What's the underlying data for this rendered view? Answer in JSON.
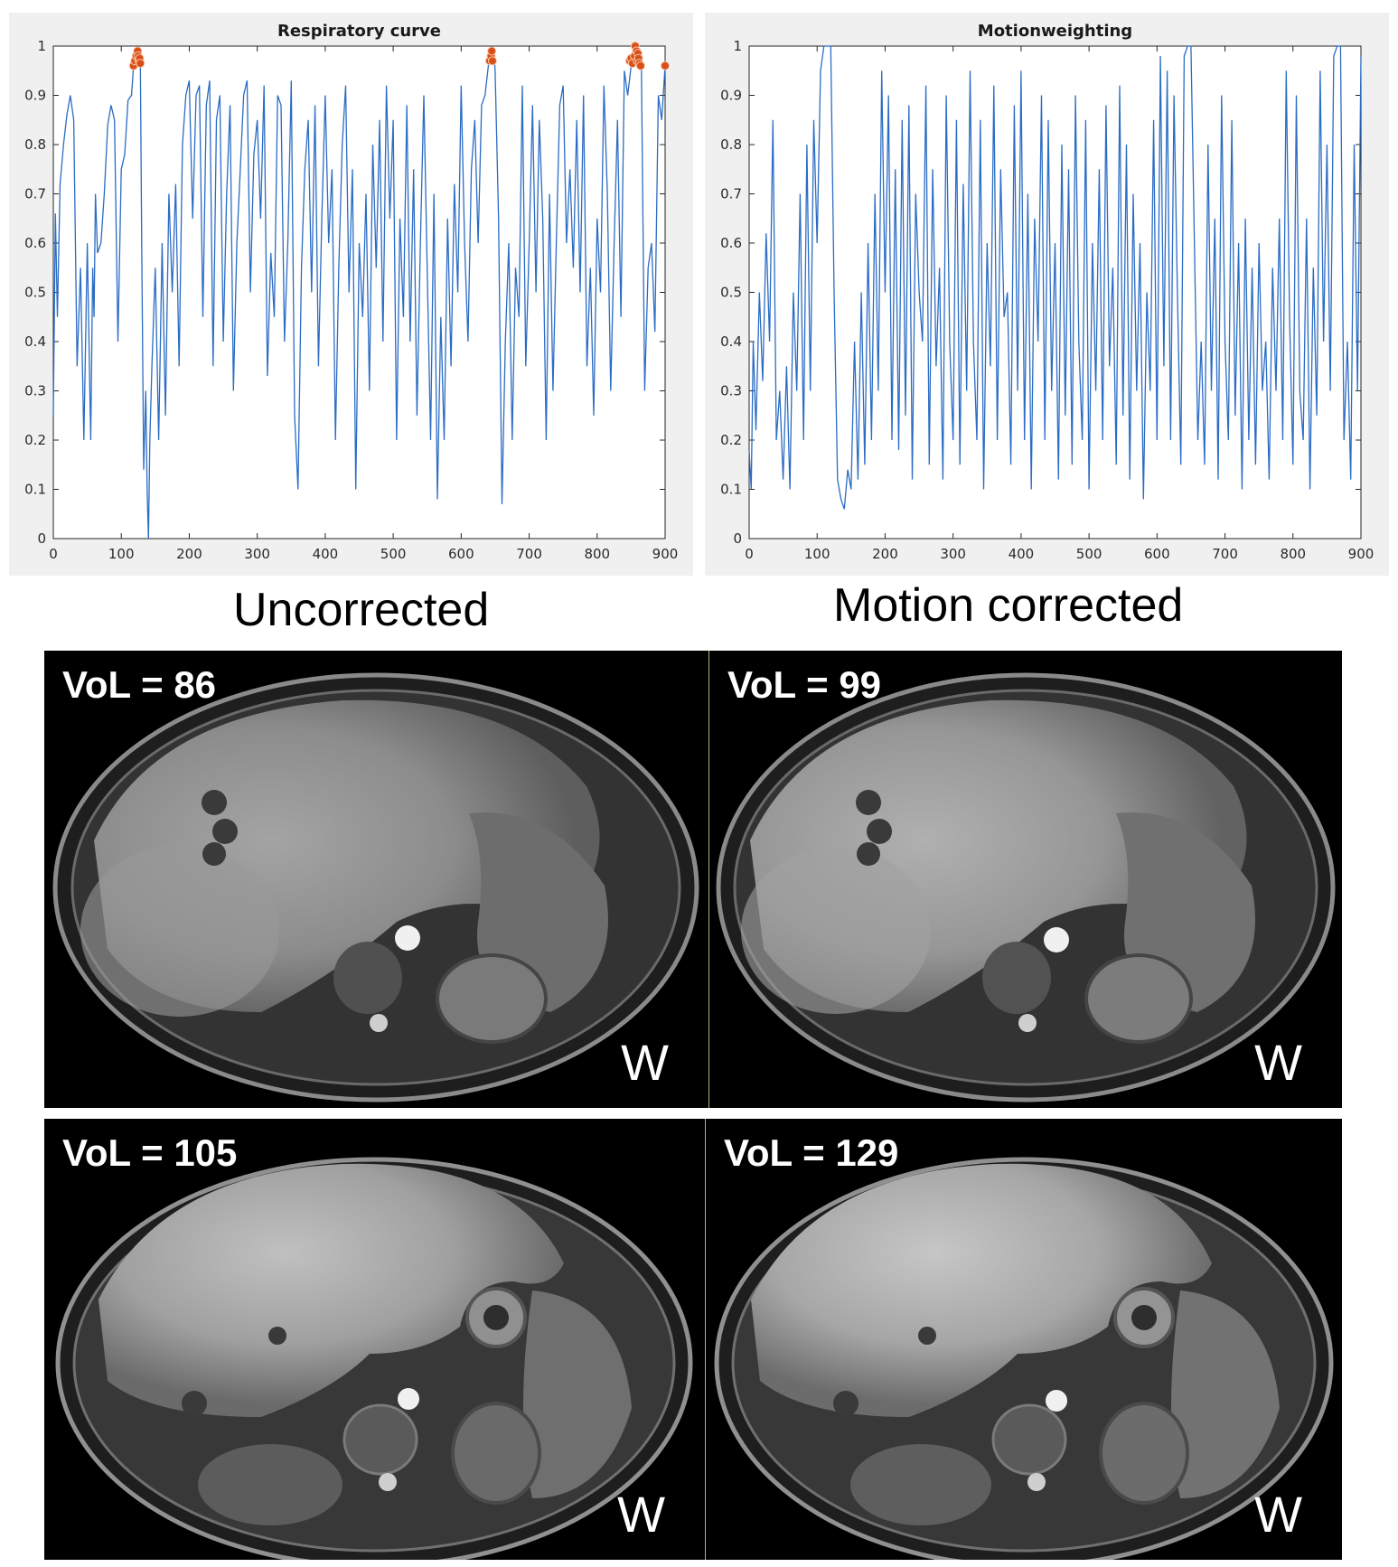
{
  "charts": {
    "left": {
      "title": "Respiratory curve"
    },
    "right": {
      "title": "Motionweighting"
    }
  },
  "headings": {
    "left": "Uncorrected",
    "right": "Motion corrected"
  },
  "mri": {
    "row1": {
      "left": {
        "vol": "VoL = 86",
        "w": "W"
      },
      "right": {
        "vol": "VoL = 99",
        "w": "W"
      }
    },
    "row2": {
      "left": {
        "vol": "VoL = 105",
        "w": "W"
      },
      "right": {
        "vol": "VoL = 129",
        "w": "W"
      }
    }
  },
  "chart_data": [
    {
      "type": "line",
      "title": "Respiratory curve",
      "xlabel": "",
      "ylabel": "",
      "xlim": [
        0,
        900
      ],
      "ylim": [
        0,
        1
      ],
      "xticks": [
        0,
        100,
        200,
        300,
        400,
        500,
        600,
        700,
        800,
        900
      ],
      "yticks": [
        0,
        0.1,
        0.2,
        0.3,
        0.4,
        0.5,
        0.6,
        0.7,
        0.8,
        0.9,
        1
      ],
      "line_color": "#2b6cc4",
      "marker_color": "#d94f1a",
      "grid": false,
      "series": [
        {
          "x": [
            0,
            3,
            6,
            10,
            15,
            20,
            25,
            30,
            35,
            40,
            45,
            50,
            55,
            58,
            60,
            62,
            65,
            70,
            75,
            80,
            85,
            90,
            95,
            100,
            105,
            110,
            115,
            118,
            120,
            122,
            124,
            126,
            128,
            130,
            133,
            136,
            138,
            140,
            142,
            145,
            150,
            155,
            160,
            165,
            170,
            175,
            180,
            185,
            190,
            195,
            200,
            205,
            210,
            215,
            220,
            225,
            230,
            235,
            240,
            245,
            250,
            255,
            260,
            265,
            270,
            275,
            280,
            285,
            290,
            295,
            300,
            305,
            310,
            315,
            320,
            325,
            330,
            335,
            340,
            345,
            350,
            355,
            360,
            365,
            370,
            375,
            380,
            385,
            390,
            395,
            400,
            405,
            410,
            415,
            420,
            425,
            430,
            435,
            440,
            445,
            450,
            455,
            460,
            465,
            470,
            475,
            480,
            485,
            490,
            495,
            500,
            505,
            510,
            515,
            520,
            525,
            530,
            535,
            540,
            545,
            550,
            555,
            560,
            565,
            570,
            575,
            580,
            585,
            590,
            595,
            600,
            605,
            610,
            615,
            620,
            625,
            630,
            635,
            640,
            643,
            645,
            648,
            650,
            655,
            660,
            665,
            670,
            675,
            680,
            685,
            690,
            695,
            700,
            705,
            710,
            715,
            720,
            725,
            730,
            735,
            740,
            745,
            750,
            755,
            760,
            765,
            770,
            775,
            780,
            785,
            790,
            795,
            800,
            805,
            810,
            815,
            820,
            825,
            830,
            835,
            840,
            845,
            850,
            852,
            855,
            858,
            860,
            862,
            865,
            870,
            875,
            880,
            885,
            890,
            895,
            900
          ],
          "y": [
            0.25,
            0.66,
            0.45,
            0.72,
            0.8,
            0.86,
            0.9,
            0.85,
            0.35,
            0.55,
            0.2,
            0.6,
            0.2,
            0.55,
            0.45,
            0.7,
            0.58,
            0.6,
            0.7,
            0.84,
            0.88,
            0.85,
            0.4,
            0.75,
            0.78,
            0.89,
            0.9,
            0.96,
            0.97,
            0.98,
            0.99,
            0.98,
            0.97,
            0.6,
            0.14,
            0.3,
            0.1,
            0.0,
            0.2,
            0.35,
            0.55,
            0.2,
            0.6,
            0.25,
            0.7,
            0.5,
            0.72,
            0.35,
            0.8,
            0.9,
            0.93,
            0.65,
            0.9,
            0.92,
            0.45,
            0.88,
            0.93,
            0.35,
            0.85,
            0.9,
            0.4,
            0.7,
            0.88,
            0.3,
            0.6,
            0.75,
            0.9,
            0.93,
            0.5,
            0.78,
            0.85,
            0.65,
            0.92,
            0.33,
            0.58,
            0.45,
            0.9,
            0.88,
            0.4,
            0.6,
            0.93,
            0.25,
            0.1,
            0.55,
            0.75,
            0.85,
            0.5,
            0.88,
            0.35,
            0.65,
            0.9,
            0.6,
            0.75,
            0.2,
            0.55,
            0.8,
            0.92,
            0.5,
            0.75,
            0.1,
            0.6,
            0.45,
            0.7,
            0.3,
            0.8,
            0.55,
            0.85,
            0.4,
            0.92,
            0.65,
            0.85,
            0.2,
            0.65,
            0.45,
            0.88,
            0.4,
            0.75,
            0.25,
            0.6,
            0.9,
            0.55,
            0.2,
            0.7,
            0.08,
            0.45,
            0.2,
            0.65,
            0.35,
            0.72,
            0.5,
            0.92,
            0.6,
            0.4,
            0.75,
            0.85,
            0.6,
            0.88,
            0.9,
            0.96,
            0.98,
            0.97,
            0.99,
            0.95,
            0.65,
            0.07,
            0.4,
            0.6,
            0.2,
            0.55,
            0.45,
            0.92,
            0.35,
            0.6,
            0.88,
            0.5,
            0.85,
            0.65,
            0.2,
            0.7,
            0.3,
            0.6,
            0.88,
            0.92,
            0.6,
            0.75,
            0.55,
            0.85,
            0.5,
            0.9,
            0.35,
            0.55,
            0.25,
            0.65,
            0.5,
            0.92,
            0.7,
            0.3,
            0.6,
            0.85,
            0.45,
            0.95,
            0.9,
            0.96,
            0.97,
            0.98,
            0.99,
            0.97,
            0.98,
            0.97,
            0.3,
            0.55,
            0.6,
            0.42,
            0.9,
            0.85,
            0.96
          ]
        }
      ],
      "markers": {
        "x": [
          118,
          120,
          122,
          124,
          125,
          126,
          127,
          128,
          642,
          644,
          645,
          646,
          848,
          850,
          852,
          855,
          856,
          858,
          859,
          860,
          861,
          862,
          864,
          900
        ],
        "y": [
          0.96,
          0.97,
          0.98,
          0.99,
          0.98,
          0.97,
          0.975,
          0.965,
          0.97,
          0.98,
          0.99,
          0.97,
          0.97,
          0.975,
          0.965,
          0.98,
          1.0,
          0.99,
          0.97,
          0.985,
          0.975,
          0.965,
          0.96,
          0.96
        ]
      }
    },
    {
      "type": "line",
      "title": "Motionweighting",
      "xlabel": "",
      "ylabel": "",
      "xlim": [
        0,
        900
      ],
      "ylim": [
        0,
        1
      ],
      "xticks": [
        0,
        100,
        200,
        300,
        400,
        500,
        600,
        700,
        800,
        900
      ],
      "yticks": [
        0,
        0.1,
        0.2,
        0.3,
        0.4,
        0.5,
        0.6,
        0.7,
        0.8,
        0.9,
        1
      ],
      "line_color": "#2b6cc4",
      "grid": false,
      "series": [
        {
          "x": [
            0,
            3,
            6,
            10,
            15,
            20,
            25,
            30,
            35,
            40,
            45,
            50,
            55,
            60,
            65,
            70,
            75,
            80,
            85,
            90,
            95,
            100,
            105,
            110,
            115,
            120,
            125,
            130,
            135,
            140,
            145,
            150,
            155,
            160,
            165,
            170,
            175,
            180,
            185,
            190,
            195,
            200,
            205,
            210,
            215,
            220,
            225,
            230,
            235,
            240,
            245,
            250,
            255,
            260,
            265,
            270,
            275,
            280,
            285,
            290,
            295,
            300,
            305,
            310,
            315,
            320,
            325,
            330,
            335,
            340,
            345,
            350,
            355,
            360,
            365,
            370,
            375,
            380,
            385,
            390,
            395,
            400,
            405,
            410,
            415,
            420,
            425,
            430,
            435,
            440,
            445,
            450,
            455,
            460,
            465,
            470,
            475,
            480,
            485,
            490,
            495,
            500,
            505,
            510,
            515,
            520,
            525,
            530,
            535,
            540,
            545,
            550,
            555,
            560,
            565,
            570,
            575,
            580,
            585,
            590,
            595,
            600,
            605,
            610,
            615,
            620,
            625,
            630,
            635,
            640,
            645,
            650,
            655,
            660,
            665,
            670,
            675,
            680,
            685,
            690,
            695,
            700,
            705,
            710,
            715,
            720,
            725,
            730,
            735,
            740,
            745,
            750,
            755,
            760,
            765,
            770,
            775,
            780,
            785,
            790,
            795,
            800,
            805,
            810,
            815,
            820,
            825,
            830,
            835,
            840,
            845,
            850,
            855,
            860,
            865,
            870,
            875,
            880,
            885,
            890,
            895,
            900
          ],
          "y": [
            0.18,
            0.1,
            0.4,
            0.22,
            0.5,
            0.32,
            0.62,
            0.4,
            0.85,
            0.2,
            0.3,
            0.12,
            0.35,
            0.1,
            0.5,
            0.3,
            0.7,
            0.2,
            0.8,
            0.3,
            0.85,
            0.6,
            0.95,
            1.0,
            1.0,
            1.0,
            0.5,
            0.12,
            0.08,
            0.06,
            0.14,
            0.1,
            0.4,
            0.12,
            0.5,
            0.15,
            0.6,
            0.2,
            0.7,
            0.3,
            0.95,
            0.5,
            0.9,
            0.2,
            0.75,
            0.18,
            0.85,
            0.25,
            0.88,
            0.12,
            0.7,
            0.5,
            0.4,
            0.92,
            0.15,
            0.75,
            0.35,
            0.55,
            0.12,
            0.9,
            0.4,
            0.2,
            0.85,
            0.15,
            0.72,
            0.3,
            0.95,
            0.4,
            0.2,
            0.85,
            0.1,
            0.6,
            0.35,
            0.92,
            0.2,
            0.75,
            0.45,
            0.5,
            0.15,
            0.88,
            0.3,
            0.95,
            0.2,
            0.7,
            0.1,
            0.65,
            0.4,
            0.9,
            0.2,
            0.85,
            0.3,
            0.6,
            0.12,
            0.8,
            0.25,
            0.75,
            0.15,
            0.9,
            0.4,
            0.2,
            0.85,
            0.1,
            0.6,
            0.3,
            0.75,
            0.2,
            0.88,
            0.35,
            0.55,
            0.15,
            0.92,
            0.25,
            0.8,
            0.12,
            0.7,
            0.3,
            0.6,
            0.08,
            0.5,
            0.3,
            0.85,
            0.2,
            0.98,
            0.35,
            0.95,
            0.2,
            0.9,
            0.5,
            0.15,
            0.98,
            1.0,
            1.0,
            0.6,
            0.2,
            0.4,
            0.15,
            0.8,
            0.3,
            0.65,
            0.12,
            0.9,
            0.4,
            0.2,
            0.85,
            0.25,
            0.6,
            0.1,
            0.65,
            0.2,
            0.55,
            0.15,
            0.6,
            0.3,
            0.4,
            0.12,
            0.55,
            0.3,
            0.65,
            0.2,
            0.95,
            0.45,
            0.15,
            0.9,
            0.3,
            0.2,
            0.65,
            0.1,
            0.55,
            0.25,
            0.95,
            0.4,
            0.8,
            0.3,
            0.98,
            1.0,
            1.0,
            0.2,
            0.4,
            0.12,
            0.8,
            0.3,
            0.98
          ]
        }
      ]
    }
  ]
}
